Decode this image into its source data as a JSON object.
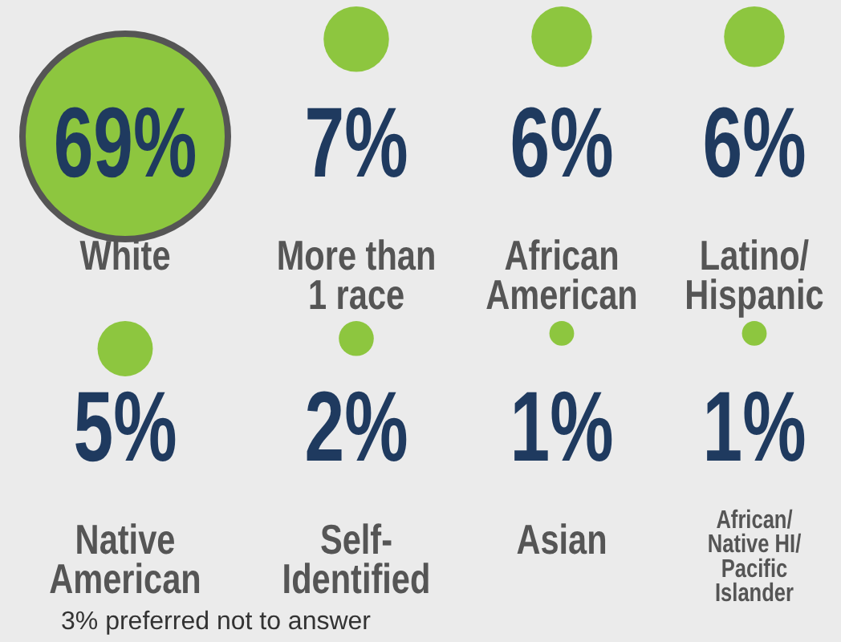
{
  "chart_data": {
    "type": "other",
    "categories": [
      "White",
      "More than 1 race",
      "African American",
      "Latino/ Hispanic",
      "Native American",
      "Self-Identified",
      "Asian",
      "African/ Native HI/ Pacific Islander"
    ],
    "values": [
      69,
      7,
      6,
      6,
      5,
      2,
      1,
      1
    ],
    "value_labels": [
      "69%",
      "7%",
      "6%",
      "6%",
      "5%",
      "2%",
      "1%",
      "1%"
    ],
    "color": "#8dc63f",
    "annotations": [
      "3% preferred not to answer"
    ]
  }
}
